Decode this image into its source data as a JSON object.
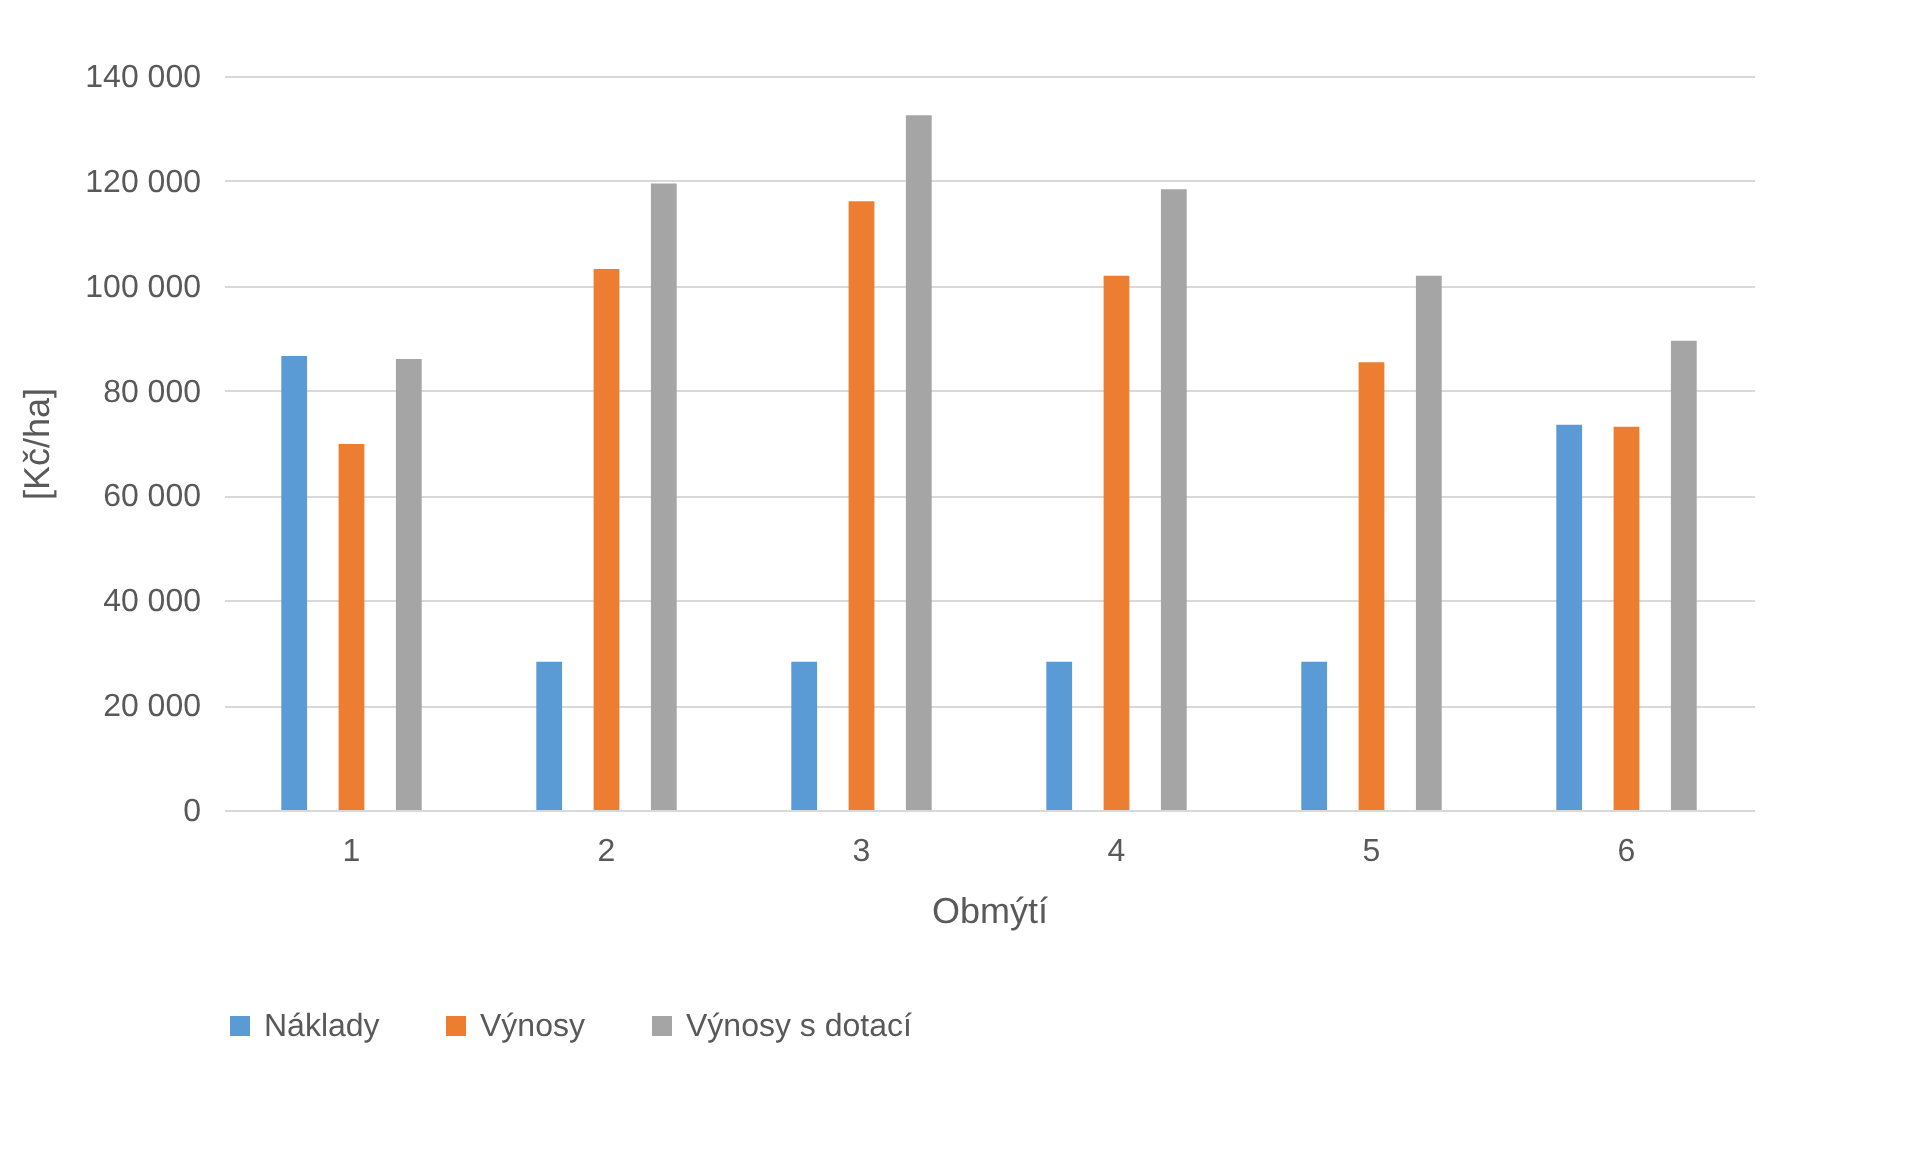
{
  "chart_data": {
    "type": "bar",
    "xlabel": "Obmýtí",
    "ylabel": "[Kč/ha]",
    "categories": [
      "1",
      "2",
      "3",
      "4",
      "5",
      "6"
    ],
    "series": [
      {
        "name": "Náklady",
        "color": "#5b9bd5",
        "values": [
          86600,
          28300,
          28300,
          28300,
          28300,
          73500
        ]
      },
      {
        "name": "Výnosy",
        "color": "#ed7d31",
        "values": [
          69800,
          103200,
          116100,
          101900,
          85400,
          73100
        ]
      },
      {
        "name": "Výnosy s dotací",
        "color": "#a5a5a5",
        "values": [
          86000,
          119500,
          132500,
          118400,
          101900,
          89500
        ]
      }
    ],
    "ylim": [
      0,
      140000
    ],
    "yticks": [
      {
        "value": 0,
        "label": "0"
      },
      {
        "value": 20000,
        "label": "20 000"
      },
      {
        "value": 40000,
        "label": "40 000"
      },
      {
        "value": 60000,
        "label": "60 000"
      },
      {
        "value": 80000,
        "label": "80 000"
      },
      {
        "value": 100000,
        "label": "100 000"
      },
      {
        "value": 120000,
        "label": "120 000"
      },
      {
        "value": 140000,
        "label": "140 000"
      }
    ],
    "grid": "y",
    "legend": "bottom"
  }
}
